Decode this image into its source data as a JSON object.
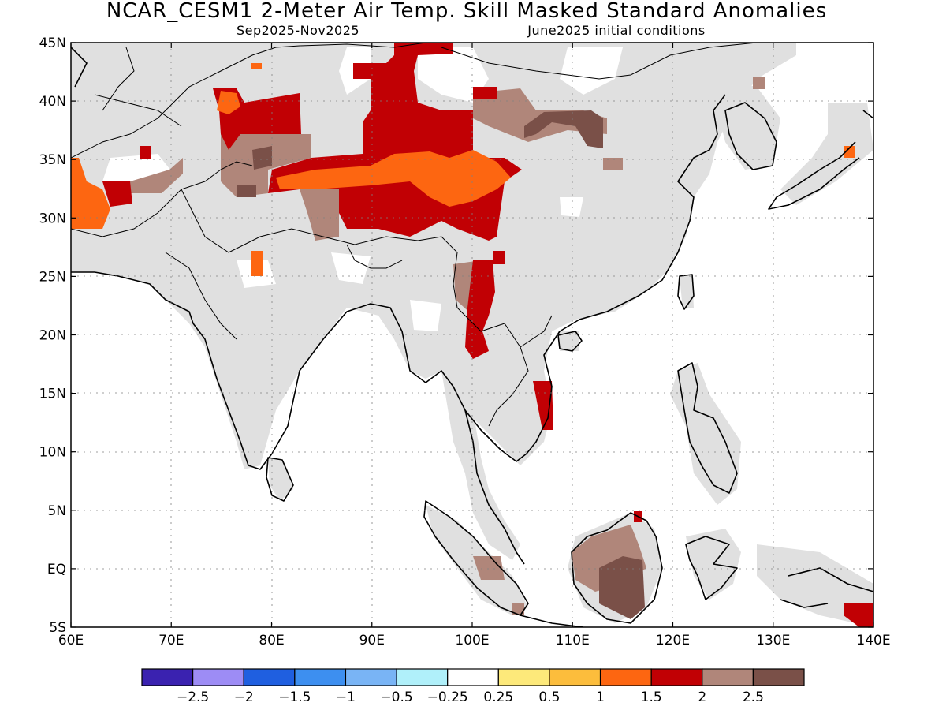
{
  "title": "NCAR_CESM1 2-Meter Air Temp. Skill Masked Standard Anomalies",
  "season": "Sep2025-Nov2025",
  "init": "June2025 initial conditions",
  "lon_ticks": [
    "60E",
    "70E",
    "80E",
    "90E",
    "100E",
    "110E",
    "120E",
    "130E",
    "140E"
  ],
  "lat_ticks": [
    "45N",
    "40N",
    "35N",
    "30N",
    "25N",
    "20N",
    "15N",
    "10N",
    "5N",
    "EQ",
    "5S"
  ],
  "colorbar": {
    "colors": [
      "#3a22b0",
      "#9d8cf5",
      "#1f5fe0",
      "#3d8ff0",
      "#79b4f5",
      "#b0f0fa",
      "#ffffff",
      "#fde97a",
      "#fcbd3c",
      "#fd6611",
      "#c10004",
      "#b0867a",
      "#7a5048"
    ],
    "labels": [
      "-2.5",
      "-2",
      "-1.5",
      "-1",
      "-0.5",
      "-0.25",
      "0.25",
      "0.5",
      "1",
      "1.5",
      "2",
      "2.5"
    ]
  },
  "legend_colors": {
    "masked": "#e0e0e0",
    "brown_light": "#b0867a",
    "brown_dark": "#7a5048",
    "dark_red": "#c10004",
    "orange": "#fd6611"
  }
}
